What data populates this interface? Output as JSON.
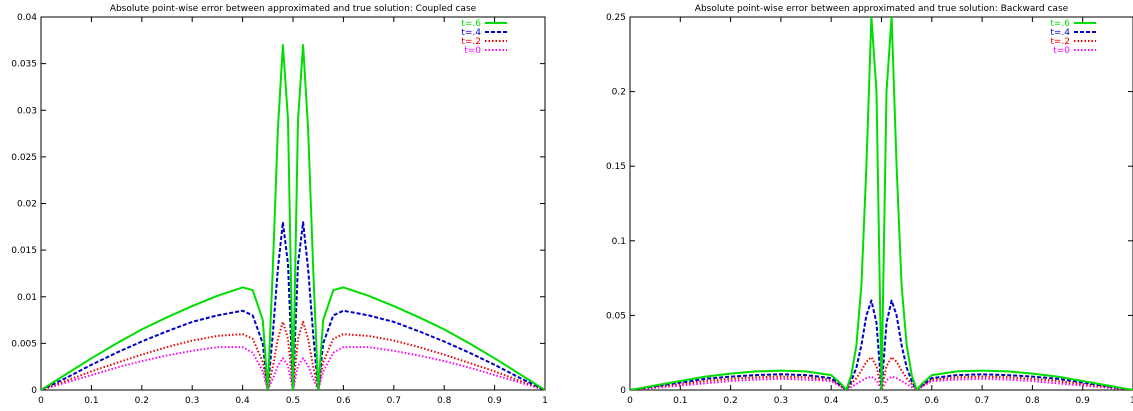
{
  "chart_data": [
    {
      "type": "line",
      "title": "Absolute point-wise error between approximated and true solution: Coupled case",
      "xlabel": "",
      "ylabel": "",
      "xlim": [
        0,
        1
      ],
      "ylim": [
        0,
        0.04
      ],
      "xticks": [
        0,
        0.1,
        0.2,
        0.3,
        0.4,
        0.5,
        0.6,
        0.7,
        0.8,
        0.9,
        1
      ],
      "yticks": [
        0,
        0.005,
        0.01,
        0.015,
        0.02,
        0.025,
        0.03,
        0.035,
        0.04
      ],
      "xtick_labels": [
        "0",
        "0.1",
        "0.2",
        "0.3",
        "0.4",
        "0.5",
        "0.6",
        "0.7",
        "0.8",
        "0.9",
        "1"
      ],
      "ytick_labels": [
        "0",
        "0.005",
        "0.01",
        "0.015",
        "0.02",
        "0.025",
        "0.03",
        "0.035",
        "0.04"
      ],
      "grid": false,
      "legend": "top-right",
      "series": [
        {
          "name": "t=.6",
          "color": "#00dd00",
          "style": "solid",
          "x": [
            0,
            0.05,
            0.1,
            0.15,
            0.2,
            0.25,
            0.3,
            0.35,
            0.4,
            0.42,
            0.44,
            0.45,
            0.46,
            0.47,
            0.48,
            0.49,
            0.5,
            0.51,
            0.52,
            0.53,
            0.54,
            0.55,
            0.56,
            0.58,
            0.6,
            0.65,
            0.7,
            0.75,
            0.8,
            0.85,
            0.9,
            0.95,
            1
          ],
          "y": [
            0,
            0.0017,
            0.0034,
            0.005,
            0.0065,
            0.0078,
            0.009,
            0.0101,
            0.011,
            0.0107,
            0.0075,
            0,
            0.013,
            0.028,
            0.037,
            0.029,
            0,
            0.029,
            0.037,
            0.028,
            0.013,
            0,
            0.0075,
            0.0107,
            0.011,
            0.0101,
            0.009,
            0.0078,
            0.0065,
            0.005,
            0.0034,
            0.0017,
            0
          ]
        },
        {
          "name": "t=.4",
          "color": "#0000cc",
          "style": "dashed",
          "x": [
            0,
            0.05,
            0.1,
            0.15,
            0.2,
            0.25,
            0.3,
            0.35,
            0.4,
            0.42,
            0.44,
            0.45,
            0.46,
            0.47,
            0.48,
            0.49,
            0.5,
            0.51,
            0.52,
            0.53,
            0.54,
            0.55,
            0.56,
            0.58,
            0.6,
            0.65,
            0.7,
            0.75,
            0.8,
            0.85,
            0.9,
            0.95,
            1
          ],
          "y": [
            0,
            0.0013,
            0.0027,
            0.004,
            0.0052,
            0.0063,
            0.0073,
            0.008,
            0.0085,
            0.008,
            0.005,
            0,
            0.006,
            0.013,
            0.018,
            0.0135,
            0,
            0.0135,
            0.018,
            0.013,
            0.006,
            0,
            0.005,
            0.008,
            0.0085,
            0.008,
            0.0073,
            0.0063,
            0.0052,
            0.004,
            0.0027,
            0.0013,
            0
          ]
        },
        {
          "name": "t=.2",
          "color": "#ee0000",
          "style": "dotted",
          "x": [
            0,
            0.05,
            0.1,
            0.15,
            0.2,
            0.25,
            0.3,
            0.35,
            0.4,
            0.42,
            0.44,
            0.45,
            0.46,
            0.47,
            0.48,
            0.49,
            0.5,
            0.51,
            0.52,
            0.53,
            0.54,
            0.55,
            0.56,
            0.58,
            0.6,
            0.65,
            0.7,
            0.75,
            0.8,
            0.85,
            0.9,
            0.95,
            1
          ],
          "y": [
            0,
            0.001,
            0.002,
            0.0029,
            0.0038,
            0.0046,
            0.0053,
            0.0058,
            0.006,
            0.0055,
            0.003,
            0,
            0.0025,
            0.0055,
            0.0073,
            0.0055,
            0,
            0.0055,
            0.0073,
            0.0055,
            0.0025,
            0,
            0.003,
            0.0055,
            0.006,
            0.0058,
            0.0053,
            0.0046,
            0.0038,
            0.0029,
            0.002,
            0.001,
            0
          ]
        },
        {
          "name": "t=0",
          "color": "#ff00ff",
          "style": "dotted",
          "x": [
            0,
            0.05,
            0.1,
            0.15,
            0.2,
            0.25,
            0.3,
            0.35,
            0.4,
            0.42,
            0.44,
            0.45,
            0.46,
            0.47,
            0.48,
            0.49,
            0.5,
            0.51,
            0.52,
            0.53,
            0.54,
            0.55,
            0.56,
            0.58,
            0.6,
            0.65,
            0.7,
            0.75,
            0.8,
            0.85,
            0.9,
            0.95,
            1
          ],
          "y": [
            0,
            0.0008,
            0.0016,
            0.0024,
            0.0031,
            0.0037,
            0.0042,
            0.0046,
            0.0046,
            0.004,
            0.002,
            0,
            0.0012,
            0.0026,
            0.0034,
            0.0026,
            0,
            0.0026,
            0.0034,
            0.0026,
            0.0012,
            0,
            0.002,
            0.004,
            0.0046,
            0.0046,
            0.0042,
            0.0037,
            0.0031,
            0.0024,
            0.0016,
            0.0008,
            0
          ]
        }
      ]
    },
    {
      "type": "line",
      "title": "Absolute point-wise error between approximated and true solution: Backward case",
      "xlabel": "",
      "ylabel": "",
      "xlim": [
        0,
        1
      ],
      "ylim": [
        0,
        0.25
      ],
      "xticks": [
        0,
        0.1,
        0.2,
        0.3,
        0.4,
        0.5,
        0.6,
        0.7,
        0.8,
        0.9,
        1
      ],
      "yticks": [
        0,
        0.05,
        0.1,
        0.15,
        0.2,
        0.25
      ],
      "xtick_labels": [
        "0",
        "0.1",
        "0.2",
        "0.3",
        "0.4",
        "0.5",
        "0.6",
        "0.7",
        "0.8",
        "0.9",
        "1"
      ],
      "ytick_labels": [
        "0",
        "0.05",
        "0.1",
        "0.15",
        "0.2",
        "0.25"
      ],
      "grid": false,
      "legend": "top-right",
      "series": [
        {
          "name": "t=.6",
          "color": "#00dd00",
          "style": "solid",
          "x": [
            0,
            0.05,
            0.1,
            0.15,
            0.2,
            0.25,
            0.3,
            0.35,
            0.4,
            0.42,
            0.43,
            0.44,
            0.45,
            0.46,
            0.47,
            0.48,
            0.49,
            0.5,
            0.51,
            0.52,
            0.53,
            0.54,
            0.55,
            0.56,
            0.57,
            0.58,
            0.6,
            0.65,
            0.7,
            0.75,
            0.8,
            0.85,
            0.9,
            0.95,
            1
          ],
          "y": [
            0,
            0.003,
            0.006,
            0.009,
            0.011,
            0.0125,
            0.013,
            0.0125,
            0.01,
            0.004,
            0,
            0.01,
            0.03,
            0.07,
            0.15,
            0.25,
            0.2,
            0,
            0.2,
            0.25,
            0.15,
            0.07,
            0.03,
            0.01,
            0,
            0.004,
            0.01,
            0.0125,
            0.013,
            0.0125,
            0.011,
            0.009,
            0.006,
            0.003,
            0
          ]
        },
        {
          "name": "t=.4",
          "color": "#0000cc",
          "style": "dashed",
          "x": [
            0,
            0.05,
            0.1,
            0.15,
            0.2,
            0.25,
            0.3,
            0.35,
            0.4,
            0.42,
            0.43,
            0.44,
            0.45,
            0.46,
            0.47,
            0.48,
            0.49,
            0.5,
            0.51,
            0.52,
            0.53,
            0.54,
            0.55,
            0.56,
            0.57,
            0.58,
            0.6,
            0.65,
            0.7,
            0.75,
            0.8,
            0.85,
            0.9,
            0.95,
            1
          ],
          "y": [
            0,
            0.0025,
            0.005,
            0.0075,
            0.009,
            0.01,
            0.0105,
            0.01,
            0.008,
            0.003,
            0,
            0.006,
            0.015,
            0.03,
            0.05,
            0.06,
            0.045,
            0,
            0.045,
            0.06,
            0.05,
            0.03,
            0.015,
            0.006,
            0,
            0.003,
            0.008,
            0.01,
            0.0105,
            0.01,
            0.009,
            0.0075,
            0.005,
            0.0025,
            0
          ]
        },
        {
          "name": "t=.2",
          "color": "#ee0000",
          "style": "dotted",
          "x": [
            0,
            0.05,
            0.1,
            0.15,
            0.2,
            0.25,
            0.3,
            0.35,
            0.4,
            0.42,
            0.43,
            0.44,
            0.45,
            0.46,
            0.47,
            0.48,
            0.49,
            0.5,
            0.51,
            0.52,
            0.53,
            0.54,
            0.55,
            0.56,
            0.57,
            0.58,
            0.6,
            0.65,
            0.7,
            0.75,
            0.8,
            0.85,
            0.9,
            0.95,
            1
          ],
          "y": [
            0,
            0.002,
            0.004,
            0.006,
            0.0075,
            0.0085,
            0.009,
            0.0085,
            0.007,
            0.0025,
            0,
            0.004,
            0.008,
            0.013,
            0.019,
            0.022,
            0.016,
            0,
            0.016,
            0.022,
            0.019,
            0.013,
            0.008,
            0.004,
            0,
            0.0025,
            0.007,
            0.0085,
            0.009,
            0.0085,
            0.0075,
            0.006,
            0.004,
            0.002,
            0
          ]
        },
        {
          "name": "t=0",
          "color": "#ff00ff",
          "style": "dotted",
          "x": [
            0,
            0.05,
            0.1,
            0.15,
            0.2,
            0.25,
            0.3,
            0.35,
            0.4,
            0.42,
            0.43,
            0.44,
            0.45,
            0.46,
            0.47,
            0.48,
            0.49,
            0.5,
            0.51,
            0.52,
            0.53,
            0.54,
            0.55,
            0.56,
            0.57,
            0.58,
            0.6,
            0.65,
            0.7,
            0.75,
            0.8,
            0.85,
            0.9,
            0.95,
            1
          ],
          "y": [
            0,
            0.0015,
            0.003,
            0.0045,
            0.006,
            0.007,
            0.0075,
            0.007,
            0.006,
            0.002,
            0,
            0.002,
            0.004,
            0.006,
            0.008,
            0.009,
            0.0065,
            0,
            0.0065,
            0.009,
            0.008,
            0.006,
            0.004,
            0.002,
            0,
            0.002,
            0.006,
            0.007,
            0.0075,
            0.007,
            0.006,
            0.0045,
            0.003,
            0.0015,
            0
          ]
        }
      ]
    }
  ]
}
